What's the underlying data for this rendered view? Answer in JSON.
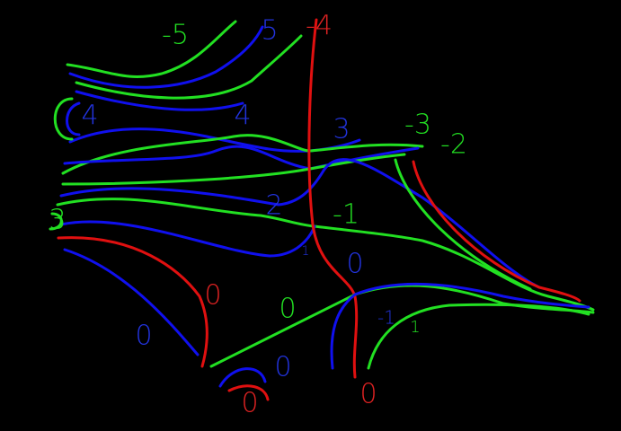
{
  "labels": [
    "-5",
    "5",
    "-4",
    "4",
    "4",
    "3",
    "-3",
    "-2",
    "3",
    "2",
    "-1",
    "1",
    "0",
    "0",
    "0",
    "0",
    "-1",
    "1",
    "0",
    "0",
    "0"
  ]
}
